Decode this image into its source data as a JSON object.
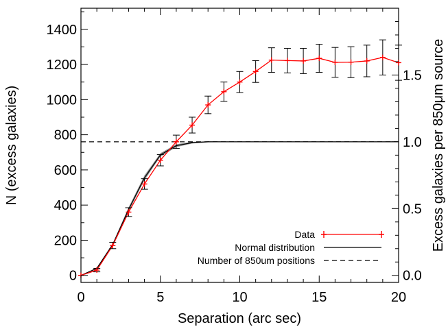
{
  "chart_data": {
    "type": "line",
    "xlabel": "Separation (arc sec)",
    "ylabel": "N (excess galaxies)",
    "y2label": "Excess galaxies per 850μm source",
    "xlim": [
      0,
      20
    ],
    "ylim": [
      -40,
      1520
    ],
    "y2lim": [
      -0.0526,
      2.0
    ],
    "x_ticks": [
      0,
      5,
      10,
      15,
      20
    ],
    "y_ticks": [
      0,
      200,
      400,
      600,
      800,
      1000,
      1200,
      1400
    ],
    "y2_ticks": [
      0.0,
      0.5,
      1.0,
      1.5
    ],
    "y2_tick_labels": [
      "0.0",
      "0.5",
      "1.0",
      "1.5"
    ],
    "grid": false,
    "legend_position": "bottom-right",
    "colors": {
      "data": "#ff0000",
      "normal": "#000000",
      "positions": "#000000",
      "band": "#808080"
    },
    "series": [
      {
        "name": "Data",
        "style": "red-line-plus-errorbars",
        "x": [
          0,
          1,
          2,
          3,
          4,
          5,
          6,
          7,
          8,
          9,
          10,
          11,
          12,
          13,
          14,
          15,
          16,
          17,
          18,
          19,
          20
        ],
        "y": [
          0,
          30,
          170,
          360,
          520,
          655,
          760,
          855,
          970,
          1045,
          1100,
          1160,
          1225,
          1222,
          1220,
          1235,
          1212,
          1213,
          1220,
          1240,
          1210
        ],
        "yerr": [
          0,
          10,
          18,
          25,
          30,
          32,
          38,
          45,
          50,
          55,
          60,
          62,
          70,
          70,
          72,
          80,
          85,
          88,
          90,
          100,
          100
        ]
      },
      {
        "name": "Normal distribution",
        "style": "solid-black-with-grey-band",
        "x": [
          0,
          1,
          2,
          3,
          4,
          5,
          6,
          7,
          8,
          9,
          10,
          11,
          12,
          13,
          14,
          15,
          16,
          17,
          18,
          19,
          20
        ],
        "y": [
          0,
          40,
          175,
          375,
          555,
          685,
          738,
          755,
          760,
          760,
          760,
          760,
          760,
          760,
          760,
          760,
          760,
          760,
          760,
          760,
          760
        ],
        "yerr": [
          0,
          5,
          8,
          12,
          14,
          10,
          8,
          5,
          3,
          2,
          2,
          2,
          2,
          2,
          2,
          2,
          2,
          2,
          2,
          2,
          2
        ]
      },
      {
        "name": "Number of 850um positions",
        "style": "dashed-black",
        "x": [
          0,
          20
        ],
        "y": [
          760,
          760
        ]
      }
    ]
  }
}
